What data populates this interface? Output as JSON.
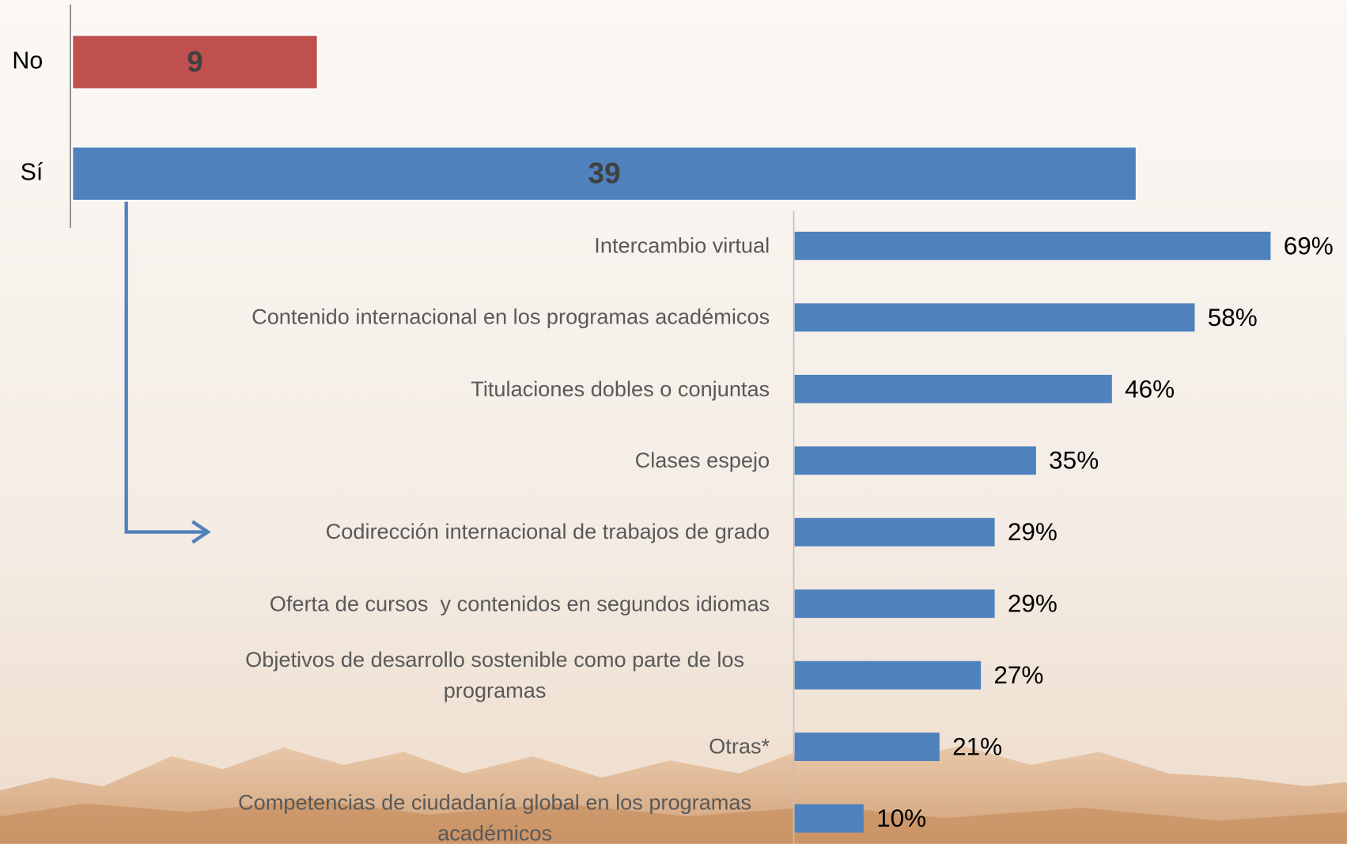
{
  "chart_data": [
    {
      "type": "bar",
      "categories": [
        "No",
        "Sí"
      ],
      "values": [
        9,
        39
      ],
      "colors": [
        "#c0504d",
        "#4f81bd"
      ]
    },
    {
      "type": "bar",
      "categories": [
        "Intercambio virtual",
        "Contenido internacional en los programas académicos",
        "Titulaciones dobles o conjuntas",
        "Clases espejo",
        "Codirección internacional de trabajos de grado",
        "Oferta de cursos  y contenidos en segundos idiomas",
        "Objetivos de desarrollo sostenible como parte de los programas",
        "Otras*",
        "Competencias de ciudadanía global en los programas académicos"
      ],
      "values": [
        69,
        58,
        46,
        35,
        29,
        29,
        27,
        21,
        10
      ],
      "value_labels": [
        "69%",
        "58%",
        "46%",
        "35%",
        "29%",
        "29%",
        "27%",
        "21%",
        "10%"
      ],
      "color": "#4f81bd"
    }
  ]
}
